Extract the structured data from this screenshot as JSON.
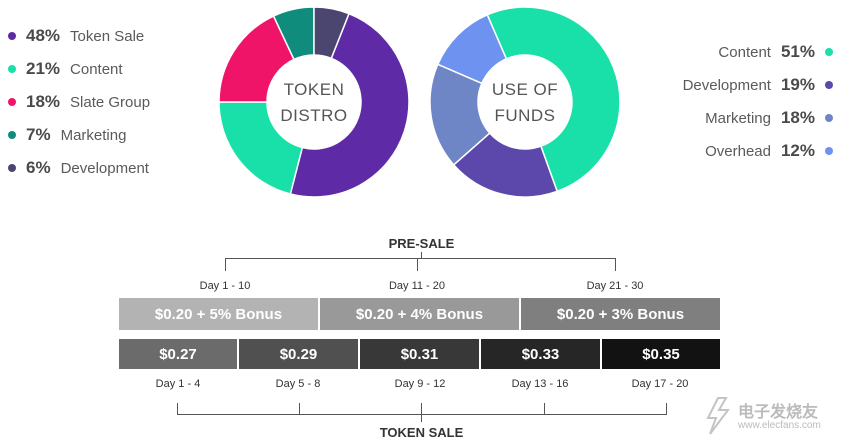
{
  "chart_data": [
    {
      "type": "pie",
      "title": "TOKEN DISTRO",
      "title_lines": [
        "TOKEN",
        "DISTRO"
      ],
      "categories": [
        "Token Sale",
        "Content",
        "Slate Group",
        "Marketing",
        "Development"
      ],
      "values": [
        48,
        21,
        18,
        7,
        6
      ],
      "value_labels": [
        "48%",
        "21%",
        "18%",
        "7%",
        "6%"
      ],
      "colors": [
        "#5e2aa6",
        "#18e0a8",
        "#f01468",
        "#0f8c7c",
        "#4a4670"
      ],
      "legend_position": "left"
    },
    {
      "type": "pie",
      "title": "USE OF FUNDS",
      "title_lines": [
        "USE OF",
        "FUNDS"
      ],
      "categories": [
        "Content",
        "Development",
        "Marketing",
        "Overhead"
      ],
      "values": [
        51,
        19,
        18,
        12
      ],
      "value_labels": [
        "51%",
        "19%",
        "18%",
        "12%"
      ],
      "colors": [
        "#18e0a8",
        "#5c48aa",
        "#6f86c6",
        "#6e92f0"
      ],
      "legend_position": "right"
    },
    {
      "type": "table",
      "title": "PRE-SALE",
      "periods": [
        "Day 1 - 10",
        "Day 11 - 20",
        "Day 21 - 30"
      ],
      "prices": [
        "$0.20 + 5% Bonus",
        "$0.20 + 4% Bonus",
        "$0.20 + 3% Bonus"
      ],
      "colors": [
        "#b3b3b3",
        "#999999",
        "#7f7f7f"
      ]
    },
    {
      "type": "table",
      "title": "TOKEN SALE",
      "periods": [
        "Day 1 - 4",
        "Day 5 - 8",
        "Day 9 - 12",
        "Day 13 - 16",
        "Day 17 - 20"
      ],
      "prices": [
        "$0.27",
        "$0.29",
        "$0.31",
        "$0.33",
        "$0.35"
      ],
      "colors": [
        "#6b6b6b",
        "#505050",
        "#383838",
        "#262626",
        "#121212"
      ]
    }
  ],
  "watermark": {
    "title": "电子发烧友",
    "url": "www.elecfans.com"
  }
}
